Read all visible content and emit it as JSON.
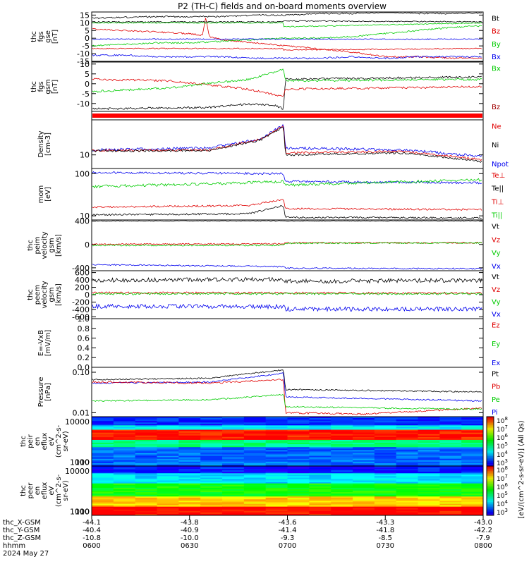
{
  "title": "P2 (TH-C) fields and on-board moments overview",
  "colors": {
    "black": "#000000",
    "red": "#e00000",
    "green": "#00cc00",
    "blue": "#0000ee",
    "brown": "#a00000"
  },
  "chart_data": [
    {
      "id": "fgs_gse",
      "type": "line",
      "ylabel": [
        "thc",
        "fgs",
        "gse",
        "[nT]"
      ],
      "ylim": [
        -15,
        17
      ],
      "yticks": [
        "15",
        "10",
        "5",
        "0",
        "-5",
        "-10",
        "-15"
      ],
      "yticks_values": [
        15,
        10,
        5,
        0,
        -5,
        -10,
        -15
      ],
      "legend": [
        {
          "label": "Bt",
          "color": "#000000"
        },
        {
          "label": "Bz",
          "color": "#e00000"
        },
        {
          "label": "By",
          "color": "#00cc00"
        },
        {
          "label": "Bx",
          "color": "#0000ee"
        }
      ],
      "series": [
        {
          "name": "Bt",
          "color": "#000000",
          "x": [
            0,
            10,
            20,
            30,
            40,
            50,
            60,
            70,
            80,
            90,
            100,
            110,
            120
          ],
          "y": [
            13,
            13.5,
            14,
            14,
            14,
            15,
            15,
            16,
            16,
            17,
            16,
            16,
            16.5
          ]
        },
        {
          "name": "Bz",
          "color": "#e00000",
          "x": [
            0,
            10,
            20,
            30,
            34,
            35,
            36,
            40,
            50,
            60,
            70,
            80,
            90,
            100,
            110,
            120
          ],
          "y": [
            6,
            5,
            4,
            3,
            2,
            14,
            1,
            -1,
            -3,
            -5,
            -7,
            -9,
            -12,
            -12,
            -13,
            -13
          ]
        },
        {
          "name": "By",
          "color": "#00cc00",
          "x": [
            0,
            10,
            20,
            30,
            40,
            50,
            60,
            70,
            80,
            90,
            100,
            110,
            120
          ],
          "y": [
            -5,
            -4,
            -3,
            -3,
            -2,
            -1,
            0,
            0,
            1,
            3,
            5,
            7,
            8
          ]
        },
        {
          "name": "Bx",
          "color": "#0000ee",
          "x": [
            0,
            10,
            20,
            30,
            40,
            50,
            60,
            70,
            80,
            90,
            100,
            110,
            120
          ],
          "y": [
            -11,
            -11,
            -12,
            -12,
            -12,
            -13,
            -13,
            -13,
            -12,
            -13,
            -12,
            -12,
            -12
          ]
        }
      ]
    },
    {
      "id": "fgs_gsm",
      "type": "line",
      "ylabel": [
        "thc",
        "fgs",
        "gsm",
        "[nT]"
      ],
      "ylim": [
        -14,
        11
      ],
      "yticks": [
        "10",
        "5",
        "0",
        "-5",
        "-10"
      ],
      "yticks_values": [
        10,
        5,
        0,
        -5,
        -10
      ],
      "legend": [
        {
          "label": "Bx",
          "color": "#00cc00"
        },
        {
          "label": "Bz",
          "color": "#a00000"
        }
      ]
    },
    {
      "id": "density",
      "type": "line",
      "ylabel": [
        "Density",
        "[cm-3]"
      ],
      "yticks": [
        "10"
      ],
      "legend": [
        {
          "label": "Ne",
          "color": "#e00000"
        },
        {
          "label": "Ni",
          "color": "#000000"
        },
        {
          "label": "Npot",
          "color": "#0000ee"
        }
      ]
    },
    {
      "id": "temperature",
      "type": "line",
      "ylabel": [
        "mom",
        "[eV]"
      ],
      "yticks": [
        "100",
        "10"
      ],
      "legend": [
        {
          "label": "Te⊥",
          "color": "#e00000"
        },
        {
          "label": "Te||",
          "color": "#000000"
        },
        {
          "label": "Ti⊥",
          "color": "#e00000"
        },
        {
          "label": "Ti||",
          "color": "#00cc00"
        }
      ]
    },
    {
      "id": "peim_velocity",
      "type": "line",
      "ylabel": [
        "thc",
        "peim",
        "velocity",
        "gsm",
        "[km/s]"
      ],
      "ylim": [
        -450,
        420
      ],
      "yticks": [
        "400",
        "0",
        "-400"
      ],
      "yticks_values": [
        400,
        0,
        -400
      ],
      "legend": [
        {
          "label": "Vt",
          "color": "#000000"
        },
        {
          "label": "Vz",
          "color": "#e00000"
        },
        {
          "label": "Vy",
          "color": "#00cc00"
        },
        {
          "label": "Vx",
          "color": "#0000ee"
        }
      ]
    },
    {
      "id": "peem_velocity",
      "type": "line",
      "ylabel": [
        "thc",
        "peem",
        "velocity",
        "gsm",
        "[km/s]"
      ],
      "ylim": [
        -650,
        650
      ],
      "yticks": [
        "600",
        "400",
        "200",
        "0",
        "-200",
        "-400",
        "-600"
      ],
      "yticks_values": [
        600,
        400,
        200,
        0,
        -200,
        -400,
        -600
      ],
      "legend": [
        {
          "label": "Vt",
          "color": "#000000"
        },
        {
          "label": "Vz",
          "color": "#e00000"
        },
        {
          "label": "Vy",
          "color": "#00cc00"
        },
        {
          "label": "Vx",
          "color": "#0000ee"
        }
      ]
    },
    {
      "id": "efield",
      "type": "line",
      "ylabel": [
        "E=-VxB",
        "[mV/m]"
      ],
      "ylim": [
        0,
        1
      ],
      "yticks": [
        "1.0",
        "0.8",
        "0.6",
        "0.4",
        "0.2",
        "0.0"
      ],
      "yticks_values": [
        1,
        0.8,
        0.6,
        0.4,
        0.2,
        0
      ],
      "legend": [
        {
          "label": "Ez",
          "color": "#e00000"
        },
        {
          "label": "Ey",
          "color": "#00cc00"
        },
        {
          "label": "Ex",
          "color": "#0000ee"
        }
      ]
    },
    {
      "id": "pressure",
      "type": "line",
      "ylabel": [
        "Pressure",
        "[nPa]"
      ],
      "yticks": [
        "0.10",
        "0.01"
      ],
      "legend": [
        {
          "label": "Pt",
          "color": "#000000"
        },
        {
          "label": "Pb",
          "color": "#e00000"
        },
        {
          "label": "Pe",
          "color": "#00cc00"
        },
        {
          "label": "Pi",
          "color": "#0000ee"
        }
      ]
    },
    {
      "id": "peir_spec",
      "type": "heatmap",
      "ylabel": [
        "thc",
        "peir",
        "en",
        "eflux",
        "eV",
        "(cm^2-s-",
        "sr-eV)"
      ],
      "yticks": [
        "10000",
        "1000",
        "100",
        "10"
      ]
    },
    {
      "id": "peer_spec",
      "type": "heatmap",
      "ylabel": [
        "thc",
        "peer",
        "en",
        "eflux",
        "eV",
        "(cm^2-s-",
        "sr-eV)"
      ],
      "yticks": [
        "10000",
        "1000",
        "100",
        "10"
      ]
    }
  ],
  "colorbar": {
    "label": "[eV/(cm^2-s-sr-eV)] (All Qs)",
    "ticks_upper": [
      "10^8",
      "10^7",
      "10^6",
      "10^5",
      "10^4",
      "10^3"
    ],
    "ticks_lower": [
      "10^8",
      "10^7",
      "10^6",
      "10^5",
      "10^4",
      "10^3"
    ]
  },
  "xaxis": {
    "rows": [
      {
        "label": "thc_X-GSM",
        "values": [
          "-44.1",
          "-43.8",
          "-43.6",
          "-43.3",
          "-43.0"
        ]
      },
      {
        "label": "thc_Y-GSM",
        "values": [
          "-40.4",
          "-40.9",
          "-41.4",
          "-41.8",
          "-42.2"
        ]
      },
      {
        "label": "thc_Z-GSM",
        "values": [
          "-10.8",
          "-10.0",
          "-9.3",
          "-8.5",
          "-7.9"
        ]
      },
      {
        "label": "hhmm",
        "values": [
          "0600",
          "0630",
          "0700",
          "0730",
          "0800"
        ]
      }
    ],
    "date": "2024 May 27"
  }
}
